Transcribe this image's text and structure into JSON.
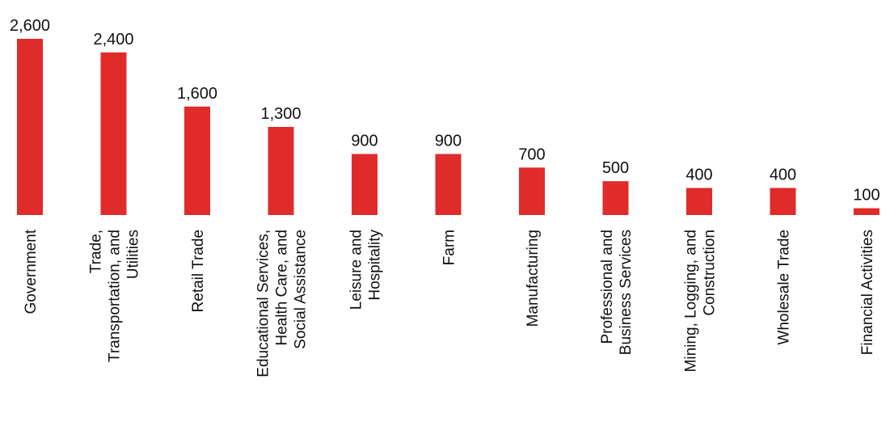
{
  "chart_data": {
    "type": "bar",
    "title": "",
    "xlabel": "",
    "ylabel": "",
    "bar_color": "#e02b2b",
    "categories": [
      "Government",
      "Trade, Transportation, and Utilities",
      "Retail Trade",
      "Educational Services, Health Care, and Social Assistance",
      "Leisure and Hospitality",
      "Farm",
      "Manufacturing",
      "Professional and Business Services",
      "Mining, Logging, and Construction",
      "Wholesale Trade",
      "Financial Activities"
    ],
    "category_lines": [
      [
        "Government"
      ],
      [
        "Trade,",
        "Transportation, and",
        "Utilities"
      ],
      [
        "Retail Trade"
      ],
      [
        "Educational Services,",
        "Health Care, and",
        "Social Assistance"
      ],
      [
        "Leisure and",
        "Hospitality"
      ],
      [
        "Farm"
      ],
      [
        "Manufacturing"
      ],
      [
        "Professional and",
        "Business Services"
      ],
      [
        "Mining, Logging, and",
        "Construction"
      ],
      [
        "Wholesale Trade"
      ],
      [
        "Financial Activities"
      ]
    ],
    "values": [
      2600,
      2400,
      1600,
      1300,
      900,
      900,
      700,
      500,
      400,
      400,
      100
    ],
    "value_labels": [
      "2,600",
      "2,400",
      "1,600",
      "1,300",
      "900",
      "900",
      "700",
      "500",
      "400",
      "400",
      "100"
    ],
    "ylim": [
      0,
      2600
    ],
    "grid": false,
    "legend": "none"
  }
}
